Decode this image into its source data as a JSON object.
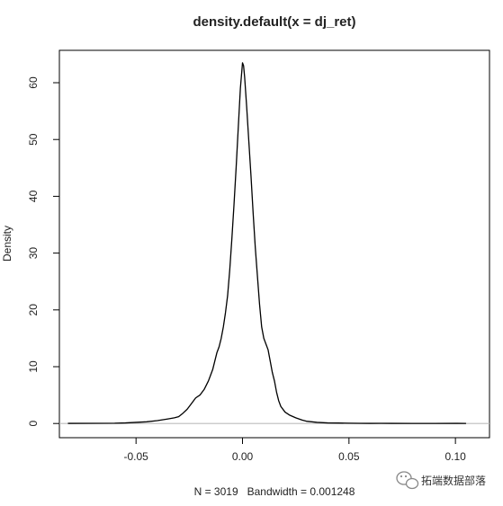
{
  "chart_data": {
    "type": "line",
    "title": "density.default(x = dj_ret)",
    "xlabel": "N = 3019   Bandwidth = 0.001248",
    "ylabel": "Density",
    "xlim": [
      -0.086,
      0.116
    ],
    "ylim": [
      -2.5,
      65.7
    ],
    "x_ticks": [
      -0.05,
      0.0,
      0.05,
      0.1
    ],
    "x_tick_labels": [
      "-0.05",
      "0.00",
      "0.05",
      "0.10"
    ],
    "y_ticks": [
      0,
      10,
      20,
      30,
      40,
      50,
      60
    ],
    "y_tick_labels": [
      "0",
      "10",
      "20",
      "30",
      "40",
      "50",
      "60"
    ],
    "baseline": 0,
    "grid": false,
    "colors": {
      "line": "#000000",
      "baseline": "#bbbbbb",
      "frame": "#000000"
    },
    "series": [
      {
        "x": [
          -0.082,
          -0.06,
          -0.055,
          -0.05,
          -0.045,
          -0.04,
          -0.035,
          -0.032,
          -0.03,
          -0.028,
          -0.026,
          -0.024,
          -0.022,
          -0.02,
          -0.018,
          -0.016,
          -0.015,
          -0.014,
          -0.013,
          -0.012,
          -0.011,
          -0.01,
          -0.009,
          -0.008,
          -0.007,
          -0.006,
          -0.005,
          -0.004,
          -0.003,
          -0.002,
          -0.001,
          0.0,
          0.0005,
          0.001,
          0.002,
          0.003,
          0.004,
          0.005,
          0.006,
          0.007,
          0.008,
          0.009,
          0.01,
          0.011,
          0.012,
          0.013,
          0.014,
          0.015,
          0.016,
          0.017,
          0.018,
          0.02,
          0.022,
          0.025,
          0.028,
          0.03,
          0.035,
          0.04,
          0.045,
          0.05,
          0.055,
          0.06,
          0.065,
          0.07,
          0.08,
          0.09,
          0.1,
          0.105
        ],
        "y": [
          0.02,
          0.05,
          0.1,
          0.2,
          0.3,
          0.5,
          0.8,
          1.0,
          1.2,
          1.8,
          2.5,
          3.5,
          4.5,
          5.0,
          6.0,
          7.5,
          8.5,
          9.5,
          11.0,
          12.5,
          13.5,
          15.0,
          17.0,
          19.5,
          22.5,
          27.0,
          32.5,
          38.5,
          45.0,
          52.0,
          59.0,
          63.5,
          63.0,
          61.0,
          55.5,
          49.5,
          43.5,
          37.0,
          31.0,
          26.0,
          21.0,
          17.0,
          15.0,
          14.0,
          13.0,
          11.0,
          9.0,
          7.5,
          5.5,
          4.0,
          3.0,
          2.0,
          1.5,
          1.0,
          0.6,
          0.4,
          0.2,
          0.1,
          0.08,
          0.05,
          0.03,
          0.02,
          0.03,
          0.02,
          0.01,
          0.01,
          0.02,
          0.01
        ]
      }
    ]
  },
  "watermark": {
    "text": "拓端数据部落",
    "icon": "wechat-icon"
  }
}
